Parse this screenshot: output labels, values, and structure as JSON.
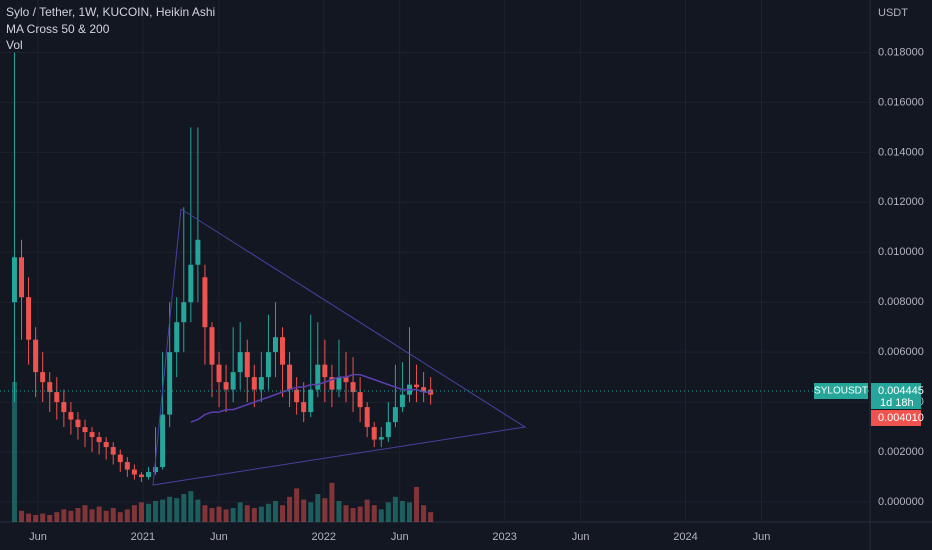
{
  "chart_data": {
    "type": "candlestick",
    "title": "Sylo / Tether, 1W, KUCOIN, Heikin Ashi",
    "indicators": [
      "MA Cross 50 & 200",
      "Vol"
    ],
    "y_axis_label": "USDT",
    "x": [
      2020.29,
      2020.329,
      2020.368,
      2020.407,
      2020.446,
      2020.485,
      2020.524,
      2020.563,
      2020.602,
      2020.641,
      2020.68,
      2020.719,
      2020.758,
      2020.797,
      2020.836,
      2020.875,
      2020.914,
      2020.953,
      2020.992,
      2021.031,
      2021.07,
      2021.109,
      2021.148,
      2021.187,
      2021.226,
      2021.265,
      2021.304,
      2021.343,
      2021.382,
      2021.421,
      2021.46,
      2021.499,
      2021.538,
      2021.577,
      2021.616,
      2021.655,
      2021.694,
      2021.733,
      2021.772,
      2021.811,
      2021.85,
      2021.889,
      2021.928,
      2021.967,
      2022.006,
      2022.045,
      2022.084,
      2022.123,
      2022.162,
      2022.201,
      2022.24,
      2022.279,
      2022.318,
      2022.357,
      2022.396,
      2022.435,
      2022.474,
      2022.513,
      2022.552,
      2022.591
    ],
    "open": [
      0.008,
      0.0098,
      0.0082,
      0.0065,
      0.0052,
      0.0048,
      0.0044,
      0.004,
      0.0036,
      0.0033,
      0.003,
      0.0028,
      0.0026,
      0.0024,
      0.0022,
      0.0019,
      0.0016,
      0.0013,
      0.0011,
      0.001,
      0.0012,
      0.0014,
      0.0035,
      0.006,
      0.0072,
      0.008,
      0.0095,
      0.009,
      0.007,
      0.0055,
      0.0048,
      0.0045,
      0.0052,
      0.006,
      0.005,
      0.0045,
      0.005,
      0.006,
      0.0066,
      0.0055,
      0.0045,
      0.004,
      0.0036,
      0.0045,
      0.0055,
      0.005,
      0.0045,
      0.005,
      0.0048,
      0.0044,
      0.0038,
      0.003,
      0.0025,
      0.0026,
      0.0032,
      0.0038,
      0.0043,
      0.0047,
      0.0046,
      0.0045
    ],
    "high": [
      0.018,
      0.0105,
      0.009,
      0.007,
      0.006,
      0.0052,
      0.005,
      0.0045,
      0.004,
      0.0036,
      0.0033,
      0.003,
      0.0028,
      0.0026,
      0.0024,
      0.0021,
      0.0018,
      0.0015,
      0.0012,
      0.0014,
      0.003,
      0.006,
      0.008,
      0.0082,
      0.0118,
      0.015,
      0.015,
      0.0095,
      0.0072,
      0.006,
      0.0055,
      0.007,
      0.0072,
      0.0065,
      0.0055,
      0.006,
      0.0075,
      0.008,
      0.007,
      0.006,
      0.005,
      0.0048,
      0.0075,
      0.0072,
      0.0065,
      0.0055,
      0.0065,
      0.006,
      0.0058,
      0.005,
      0.004,
      0.0032,
      0.003,
      0.004,
      0.0055,
      0.0056,
      0.007,
      0.0055,
      0.0052,
      0.005
    ],
    "low": [
      0.004,
      0.0065,
      0.0055,
      0.0042,
      0.004,
      0.0036,
      0.0033,
      0.003,
      0.0027,
      0.0025,
      0.0022,
      0.002,
      0.0019,
      0.0017,
      0.0015,
      0.0012,
      0.001,
      0.0009,
      0.0008,
      0.0009,
      0.0011,
      0.0013,
      0.003,
      0.005,
      0.006,
      0.0072,
      0.008,
      0.0055,
      0.0042,
      0.0038,
      0.0036,
      0.004,
      0.0045,
      0.004,
      0.0038,
      0.004,
      0.0045,
      0.005,
      0.0042,
      0.0038,
      0.0035,
      0.0032,
      0.0034,
      0.0042,
      0.004,
      0.0038,
      0.0042,
      0.004,
      0.0036,
      0.0032,
      0.0026,
      0.0022,
      0.0022,
      0.0024,
      0.003,
      0.0036,
      0.004,
      0.004,
      0.004,
      0.0039
    ],
    "close": [
      0.0098,
      0.0082,
      0.0065,
      0.0052,
      0.0048,
      0.0044,
      0.004,
      0.0036,
      0.0033,
      0.003,
      0.0028,
      0.0026,
      0.0024,
      0.0022,
      0.0019,
      0.0016,
      0.0013,
      0.0011,
      0.001,
      0.0012,
      0.0014,
      0.0035,
      0.006,
      0.0072,
      0.008,
      0.0095,
      0.0105,
      0.007,
      0.0055,
      0.0048,
      0.0045,
      0.0052,
      0.006,
      0.005,
      0.0045,
      0.005,
      0.006,
      0.0066,
      0.0055,
      0.0045,
      0.004,
      0.0036,
      0.0045,
      0.0055,
      0.005,
      0.0045,
      0.005,
      0.0048,
      0.0044,
      0.0038,
      0.003,
      0.0025,
      0.0026,
      0.0032,
      0.0038,
      0.0043,
      0.0047,
      0.0046,
      0.0044,
      0.0043
    ],
    "volume": [
      100,
      8,
      6,
      5,
      6,
      5,
      7,
      9,
      8,
      10,
      12,
      9,
      11,
      8,
      10,
      7,
      9,
      12,
      14,
      13,
      15,
      16,
      18,
      17,
      20,
      22,
      16,
      12,
      10,
      11,
      9,
      10,
      14,
      12,
      10,
      11,
      13,
      15,
      12,
      18,
      24,
      16,
      14,
      20,
      17,
      28,
      15,
      12,
      10,
      11,
      16,
      12,
      9,
      14,
      18,
      15,
      14,
      25,
      12,
      7
    ],
    "ma": [
      null,
      null,
      null,
      null,
      null,
      null,
      null,
      null,
      null,
      null,
      null,
      null,
      null,
      null,
      null,
      null,
      null,
      null,
      null,
      null,
      null,
      null,
      null,
      null,
      null,
      0.0032,
      0.0033,
      0.0035,
      0.0036,
      0.0036,
      0.0037,
      0.0037,
      0.0038,
      0.0039,
      0.004,
      0.0041,
      0.0042,
      0.0043,
      0.0044,
      0.0045,
      0.0046,
      0.0046,
      0.0047,
      0.0047,
      0.0048,
      0.0049,
      0.005,
      0.005,
      0.0051,
      0.0051,
      0.005,
      0.0049,
      0.0048,
      0.0047,
      0.0046,
      0.0045,
      0.0045,
      0.0045,
      0.0044,
      0.0044
    ],
    "up_color": "#26a69a",
    "down_color": "#ef5350",
    "ma_color": "#5b3fb0",
    "xlim": [
      2020.21,
      2025.02
    ],
    "xticks": [
      {
        "value": 2020.42,
        "label": "Jun"
      },
      2021,
      {
        "value": 2021.42,
        "label": "Jun"
      },
      2022,
      {
        "value": 2022.42,
        "label": "Jun"
      },
      2023,
      {
        "value": 2023.42,
        "label": "Jun"
      },
      2024,
      {
        "value": 2024.42,
        "label": "Jun"
      }
    ],
    "ylim": [
      -0.0008,
      0.0201
    ],
    "yticks": [
      {
        "value": 0,
        "label": "0.000000"
      },
      {
        "value": 0.002,
        "label": "0.002000"
      },
      {
        "value": 0.004,
        "label": "0.004000"
      },
      {
        "value": 0.006,
        "label": "0.006000"
      },
      {
        "value": 0.008,
        "label": "0.008000"
      },
      {
        "value": 0.01,
        "label": "0.010000"
      },
      {
        "value": 0.012,
        "label": "0.012000"
      },
      {
        "value": 0.014,
        "label": "0.014000"
      },
      {
        "value": 0.016,
        "label": "0.016000"
      },
      {
        "value": 0.018,
        "label": "0.018000"
      }
    ],
    "symbol": "SYLOUSDT",
    "last_price": {
      "value": 0.004445,
      "label": "0.004445"
    },
    "countdown": "1d 18h",
    "prev_close": {
      "value": 0.00401,
      "label": "0.004010"
    }
  }
}
